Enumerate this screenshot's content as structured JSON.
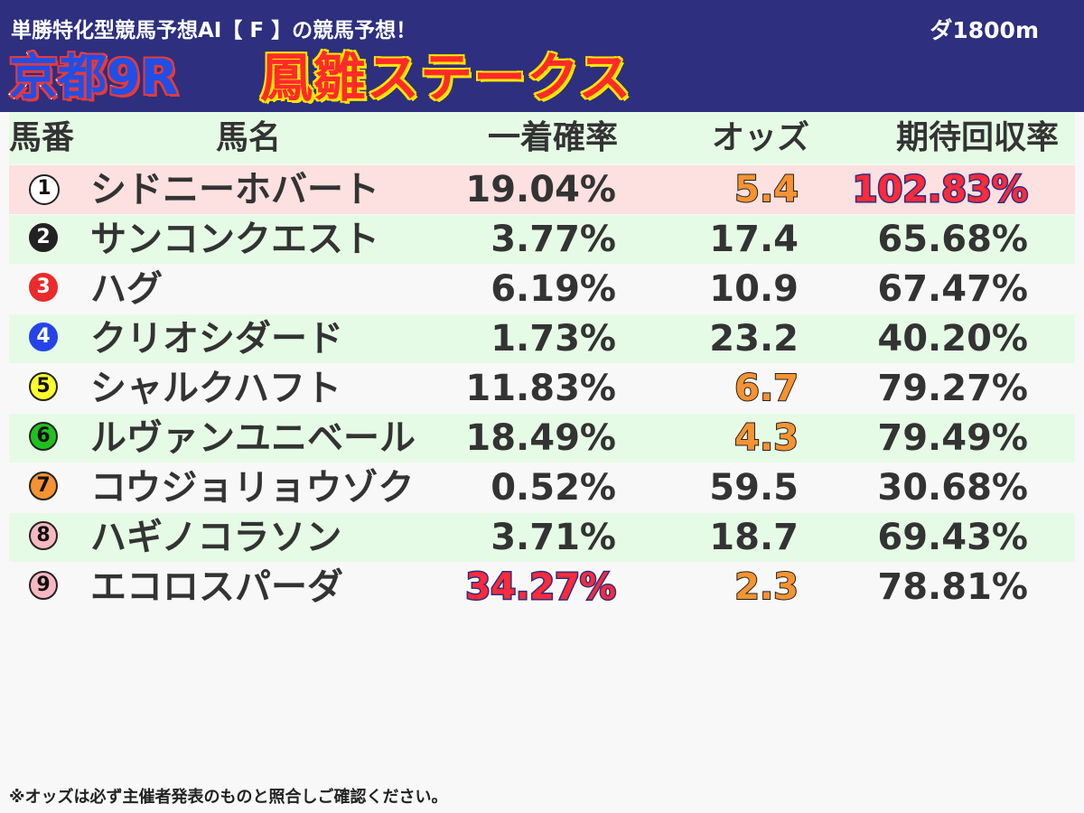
{
  "header": {
    "subtitle": "単勝特化型競馬予想AI【 F 】の競馬予想！",
    "distance": "ダ1800m",
    "race_no": "京都9R",
    "race_name": "鳳雛ステークス"
  },
  "table": {
    "columns": [
      "馬番",
      "馬名",
      "一着確率",
      "オッズ",
      "期待回収率"
    ],
    "rows": [
      {
        "number": "1",
        "name": "シドニーホバート",
        "win_prob": "19.04%",
        "odds": "5.4",
        "expected_return": "102.83%",
        "odds_highlight": true,
        "return_highlight": true
      },
      {
        "number": "2",
        "name": "サンコンクエスト",
        "win_prob": "3.77%",
        "odds": "17.4",
        "expected_return": "65.68%"
      },
      {
        "number": "3",
        "name": "ハグ",
        "win_prob": "6.19%",
        "odds": "10.9",
        "expected_return": "67.47%"
      },
      {
        "number": "4",
        "name": "クリオシダード",
        "win_prob": "1.73%",
        "odds": "23.2",
        "expected_return": "40.20%"
      },
      {
        "number": "5",
        "name": "シャルクハフト",
        "win_prob": "11.83%",
        "odds": "6.7",
        "expected_return": "79.27%",
        "odds_highlight": true
      },
      {
        "number": "6",
        "name": "ルヴァンユニベール",
        "win_prob": "18.49%",
        "odds": "4.3",
        "expected_return": "79.49%",
        "odds_highlight": true
      },
      {
        "number": "7",
        "name": "コウジョリョウゾク",
        "win_prob": "0.52%",
        "odds": "59.5",
        "expected_return": "30.68%"
      },
      {
        "number": "8",
        "name": "ハギノコラソン",
        "win_prob": "3.71%",
        "odds": "18.7",
        "expected_return": "69.43%"
      },
      {
        "number": "9",
        "name": "エコロスパーダ",
        "win_prob": "34.27%",
        "odds": "2.3",
        "expected_return": "78.81%",
        "odds_highlight": true,
        "prob_highlight": true
      }
    ]
  },
  "footnote": "※オッズは必ず主催者発表のものと照合しご確認ください。",
  "colors": {
    "header_bg": "#2e2f7f",
    "row_green": "#e6fbe6",
    "row_highlight": "#fde0e0",
    "odds_highlight": "#f59332",
    "pct_highlight": "#ff2a3a"
  }
}
